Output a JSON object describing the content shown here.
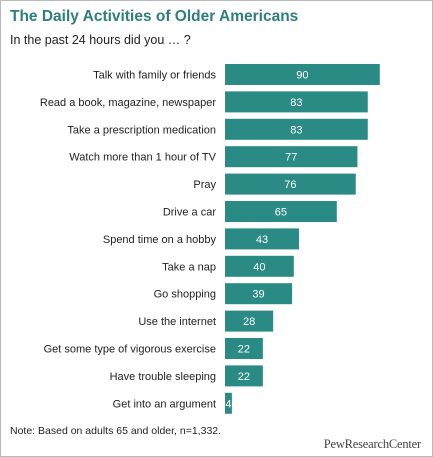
{
  "title": "The Daily Activities of Older Americans",
  "subtitle": "In the past 24 hours did you … ?",
  "note": "Note: Based on adults 65 and older, n=1,332.",
  "logo_text": "PewResearchCenter",
  "colors": {
    "bar": "#2a8a84",
    "title": "#2c7f7a",
    "value_text": "#ffffff",
    "label_text": "#222222"
  },
  "chart_data": {
    "type": "bar",
    "orientation": "horizontal",
    "categories": [
      "Talk with family or friends",
      "Read a book, magazine, newspaper",
      "Take a prescription medication",
      "Watch more than 1 hour of TV",
      "Pray",
      "Drive a car",
      "Spend time on a hobby",
      "Take a nap",
      "Go shopping",
      "Use the internet",
      "Get some type of vigorous exercise",
      "Have trouble sleeping",
      "Get into an argument"
    ],
    "values": [
      90,
      83,
      83,
      77,
      76,
      65,
      43,
      40,
      39,
      28,
      22,
      22,
      4
    ],
    "xlim": [
      0,
      100
    ],
    "grid": false,
    "legend": "none"
  }
}
